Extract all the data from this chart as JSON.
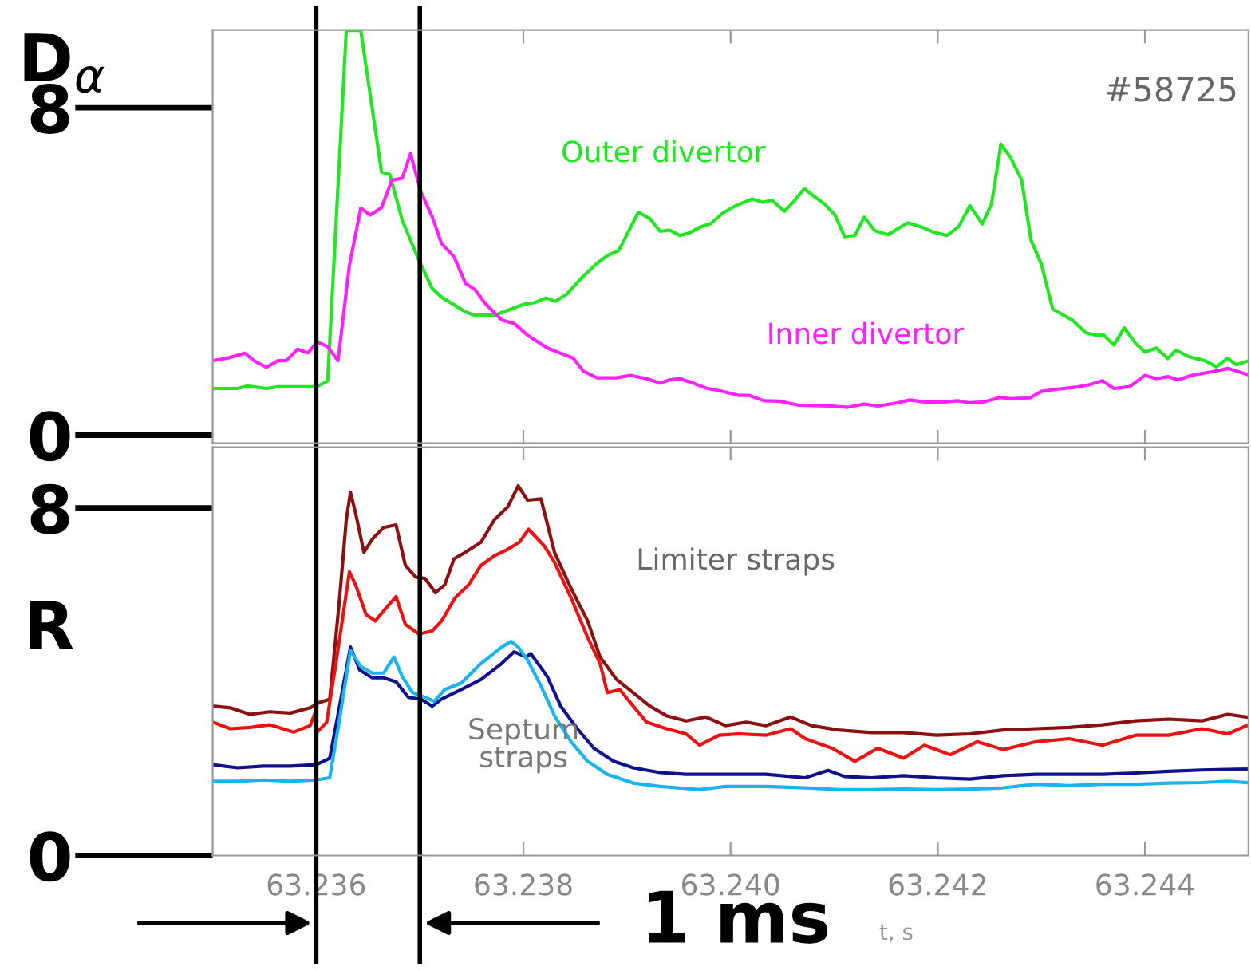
{
  "chart_data": [
    {
      "type": "line",
      "ylabel": "D$_{α}$",
      "xlim": [
        63.235,
        63.245
      ],
      "ylim": [
        -0.2,
        9.9
      ],
      "xticks": [
        {
          "value": 63.236,
          "label": null
        },
        {
          "value": 63.238,
          "label": null
        },
        {
          "value": 63.24,
          "label": null
        },
        {
          "value": 63.242,
          "label": null
        },
        {
          "value": 63.244,
          "label": null
        }
      ],
      "yticks": [
        0,
        8
      ],
      "tick_labels": "y",
      "grid": false,
      "legend": false,
      "marker": "none",
      "line_style": "solid",
      "annotations": [
        "#58725"
      ],
      "ref_lines": [
        {
          "axis": "x",
          "value": 63.236,
          "color": "#000000"
        },
        {
          "axis": "x",
          "value": 63.237,
          "color": "#000000"
        }
      ],
      "series": [
        {
          "name": "Outer divertor",
          "color": "#22e622",
          "x": [
            63.235,
            63.23524,
            63.23533,
            63.23552,
            63.23562,
            63.236,
            63.23611,
            63.23629,
            63.23643,
            63.23663,
            63.23671,
            63.23683,
            63.23699,
            63.23712,
            63.23721,
            63.23734,
            63.23744,
            63.23753,
            63.23772,
            63.23791,
            63.23801,
            63.23811,
            63.23822,
            63.23831,
            63.23842,
            63.23858,
            63.23871,
            63.23881,
            63.23892,
            63.23911,
            63.23922,
            63.23932,
            63.23941,
            63.23951,
            63.2396,
            63.23971,
            63.23981,
            63.23992,
            63.24005,
            63.24015,
            63.24021,
            63.24031,
            63.2404,
            63.24052,
            63.24061,
            63.24071,
            63.24082,
            63.24091,
            63.24101,
            63.2411,
            63.2412,
            63.24129,
            63.24139,
            63.24152,
            63.24171,
            63.24184,
            63.24196,
            63.24209,
            63.2422,
            63.24231,
            63.24243,
            63.24252,
            63.24261,
            63.2427,
            63.24281,
            63.2429,
            63.243,
            63.24311,
            63.2433,
            63.24343,
            63.24353,
            63.2436,
            63.2437,
            63.2438,
            63.24391,
            63.244,
            63.24411,
            63.24422,
            63.2443,
            63.24442,
            63.24458,
            63.24469,
            63.2448,
            63.24488,
            63.24498
          ],
          "values": [
            1.14,
            1.14,
            1.2,
            1.14,
            1.18,
            1.18,
            1.32,
            9.89,
            9.89,
            6.43,
            6.37,
            5.25,
            4.28,
            3.58,
            3.37,
            3.17,
            3.01,
            2.93,
            2.93,
            3.11,
            3.2,
            3.24,
            3.35,
            3.27,
            3.45,
            3.89,
            4.2,
            4.39,
            4.51,
            5.45,
            5.29,
            4.98,
            5.01,
            4.88,
            4.94,
            5.09,
            5.17,
            5.42,
            5.61,
            5.71,
            5.77,
            5.69,
            5.74,
            5.47,
            5.71,
            6.02,
            5.81,
            5.64,
            5.37,
            4.85,
            4.88,
            5.33,
            5.0,
            4.9,
            5.19,
            5.09,
            4.96,
            4.88,
            5.09,
            5.61,
            5.16,
            5.66,
            7.11,
            6.8,
            6.23,
            4.77,
            4.18,
            3.08,
            2.81,
            2.5,
            2.44,
            2.45,
            2.2,
            2.62,
            2.24,
            2.03,
            2.13,
            1.87,
            2.08,
            1.92,
            1.82,
            1.67,
            1.88,
            1.72,
            1.8
          ]
        },
        {
          "name": "Inner divertor",
          "color": "#ff22ff",
          "x": [
            63.235,
            63.23514,
            63.23531,
            63.23541,
            63.23552,
            63.23563,
            63.23571,
            63.23582,
            63.23592,
            63.23601,
            63.23611,
            63.23621,
            63.23632,
            63.23643,
            63.23652,
            63.23663,
            63.23673,
            63.23683,
            63.23691,
            63.23701,
            63.23712,
            63.23721,
            63.23733,
            63.23744,
            63.23753,
            63.23763,
            63.23779,
            63.23791,
            63.23804,
            63.23823,
            63.23836,
            63.23848,
            63.23858,
            63.23871,
            63.2389,
            63.23903,
            63.23919,
            63.23932,
            63.23941,
            63.23951,
            63.23964,
            63.23976,
            63.23992,
            63.24008,
            63.24018,
            63.24032,
            63.24047,
            63.24066,
            63.24098,
            63.24113,
            63.24129,
            63.24142,
            63.24161,
            63.24173,
            63.24187,
            63.24207,
            63.24219,
            63.24231,
            63.24244,
            63.2426,
            63.24271,
            63.24289,
            63.243,
            63.24314,
            63.24333,
            63.24346,
            63.24359,
            63.2437,
            63.24385,
            63.244,
            63.24411,
            63.24422,
            63.24432,
            63.24445,
            63.24467,
            63.2448,
            63.24498
          ],
          "values": [
            1.82,
            1.88,
            2.0,
            1.8,
            1.66,
            1.82,
            1.82,
            2.1,
            2.01,
            2.28,
            2.16,
            1.82,
            4.15,
            5.55,
            5.38,
            5.56,
            6.23,
            6.28,
            6.88,
            5.95,
            5.33,
            4.68,
            4.36,
            3.71,
            3.56,
            3.22,
            2.81,
            2.73,
            2.44,
            2.13,
            2.0,
            1.88,
            1.56,
            1.4,
            1.4,
            1.46,
            1.38,
            1.27,
            1.35,
            1.38,
            1.27,
            1.15,
            1.07,
            0.97,
            0.97,
            0.84,
            0.83,
            0.73,
            0.71,
            0.68,
            0.76,
            0.71,
            0.79,
            0.86,
            0.81,
            0.81,
            0.84,
            0.79,
            0.81,
            0.92,
            0.89,
            0.91,
            1.07,
            1.12,
            1.17,
            1.23,
            1.33,
            1.14,
            1.18,
            1.46,
            1.38,
            1.43,
            1.35,
            1.46,
            1.56,
            1.63,
            1.49
          ]
        }
      ]
    },
    {
      "type": "line",
      "ylabel": "R",
      "xlabel": "t, s",
      "xlim": [
        63.235,
        63.245
      ],
      "ylim": [
        0,
        9.4
      ],
      "xticks": [
        63.236,
        63.238,
        {
          "value": 63.24,
          "label": "63.240"
        },
        63.242,
        63.244
      ],
      "yticks": [
        0,
        8
      ],
      "grid": false,
      "legend": false,
      "marker": "none",
      "line_style": "solid",
      "annotations": [
        "Limiter straps",
        "Septum\nstraps",
        "1 ms"
      ],
      "ref_lines": [
        {
          "axis": "x",
          "value": 63.236,
          "color": "#000000"
        },
        {
          "axis": "x",
          "value": 63.237,
          "color": "#000000"
        }
      ],
      "series": [
        {
          "color": "#8b1010",
          "x": [
            63.235,
            63.23517,
            63.23536,
            63.23555,
            63.23575,
            63.23594,
            63.23603,
            63.23613,
            63.23622,
            63.23629,
            63.23633,
            63.23638,
            63.23646,
            63.23654,
            63.23665,
            63.23677,
            63.23686,
            63.23696,
            63.23705,
            63.23715,
            63.23724,
            63.23733,
            63.23744,
            63.23759,
            63.23772,
            63.23785,
            63.23795,
            63.23804,
            63.23817,
            63.2383,
            63.23846,
            63.23862,
            63.23874,
            63.2389,
            63.23906,
            63.23922,
            63.23938,
            63.23957,
            63.23976,
            63.23995,
            63.24015,
            63.24034,
            63.24058,
            63.24078,
            63.24104,
            63.24136,
            63.24167,
            63.24199,
            63.24231,
            63.24263,
            63.24295,
            63.24327,
            63.24359,
            63.24391,
            63.24423,
            63.24455,
            63.2448,
            63.24498
          ],
          "values": [
            3.44,
            3.4,
            3.25,
            3.31,
            3.28,
            3.4,
            3.52,
            3.6,
            5.78,
            7.73,
            8.36,
            7.88,
            6.98,
            7.28,
            7.55,
            7.61,
            6.68,
            6.41,
            6.38,
            6.05,
            6.23,
            6.83,
            6.98,
            7.21,
            7.73,
            8.03,
            8.51,
            8.18,
            8.21,
            6.98,
            6.15,
            5.4,
            4.57,
            4.05,
            3.75,
            3.44,
            3.22,
            3.1,
            3.19,
            2.99,
            3.07,
            2.99,
            3.19,
            2.99,
            2.89,
            2.83,
            2.83,
            2.77,
            2.8,
            2.89,
            2.92,
            2.95,
            3.01,
            3.1,
            3.14,
            3.1,
            3.25,
            3.19
          ]
        },
        {
          "color": "#ee1111",
          "x": [
            63.235,
            63.23517,
            63.23536,
            63.23555,
            63.23578,
            63.23594,
            63.23599,
            63.23601,
            63.2361,
            63.23619,
            63.23632,
            63.23638,
            63.23648,
            63.23657,
            63.23665,
            63.23677,
            63.23686,
            63.23699,
            63.23712,
            63.23721,
            63.23734,
            63.23747,
            63.23759,
            63.23772,
            63.23785,
            63.23796,
            63.23805,
            63.23814,
            63.2382,
            63.2383,
            63.23846,
            63.23862,
            63.23874,
            63.23881,
            63.23893,
            63.23906,
            63.23919,
            63.23938,
            63.23957,
            63.2397,
            63.23989,
            63.24008,
            63.24034,
            63.24058,
            63.24072,
            63.24098,
            63.2412,
            63.24142,
            63.24167,
            63.24187,
            63.24212,
            63.24238,
            63.24263,
            63.24295,
            63.24327,
            63.24359,
            63.24391,
            63.24423,
            63.24455,
            63.2448,
            63.24498
          ],
          "values": [
            3.07,
            2.92,
            2.95,
            3.01,
            2.84,
            2.99,
            3.29,
            2.84,
            3.07,
            4.42,
            6.53,
            6.23,
            5.55,
            5.4,
            5.63,
            5.96,
            5.32,
            5.1,
            5.17,
            5.4,
            5.93,
            6.23,
            6.68,
            6.9,
            7.05,
            7.21,
            7.51,
            7.28,
            7.13,
            6.75,
            5.93,
            5.02,
            4.42,
            3.75,
            3.82,
            3.44,
            3.07,
            2.92,
            2.8,
            2.54,
            2.77,
            2.8,
            2.77,
            2.92,
            2.69,
            2.47,
            2.17,
            2.47,
            2.24,
            2.54,
            2.32,
            2.62,
            2.44,
            2.62,
            2.69,
            2.54,
            2.77,
            2.77,
            2.92,
            2.8,
            2.99
          ]
        },
        {
          "color": "#10108c",
          "x": [
            63.235,
            63.23524,
            63.23549,
            63.23575,
            63.236,
            63.23613,
            63.23622,
            63.23633,
            63.23642,
            63.23654,
            63.23665,
            63.23677,
            63.23689,
            63.23701,
            63.23712,
            63.23721,
            63.2374,
            63.23759,
            63.23779,
            63.23791,
            63.23803,
            63.23807,
            63.23814,
            63.23823,
            63.23836,
            63.23852,
            63.23868,
            63.23887,
            63.23906,
            63.23932,
            63.23957,
            63.23995,
            63.24034,
            63.24072,
            63.24094,
            63.2411,
            63.24136,
            63.24167,
            63.24199,
            63.24231,
            63.24263,
            63.24295,
            63.24327,
            63.24359,
            63.24391,
            63.24423,
            63.24455,
            63.24498
          ],
          "values": [
            2.09,
            2.02,
            2.06,
            2.06,
            2.09,
            2.24,
            3.37,
            4.8,
            4.27,
            4.09,
            4.09,
            4.0,
            3.64,
            3.6,
            3.44,
            3.6,
            3.82,
            4.05,
            4.42,
            4.69,
            4.57,
            4.65,
            4.42,
            4.12,
            3.44,
            2.92,
            2.47,
            2.17,
            2.02,
            1.91,
            1.87,
            1.87,
            1.87,
            1.79,
            1.96,
            1.82,
            1.79,
            1.84,
            1.79,
            1.76,
            1.84,
            1.87,
            1.87,
            1.87,
            1.9,
            1.94,
            1.97,
            1.99
          ]
        },
        {
          "color": "#18b4f0",
          "x": [
            63.235,
            63.23524,
            63.23549,
            63.23575,
            63.236,
            63.23613,
            63.23622,
            63.23633,
            63.23643,
            63.23654,
            63.23665,
            63.23675,
            63.23683,
            63.23693,
            63.23702,
            63.23714,
            63.23724,
            63.2374,
            63.23759,
            63.23779,
            63.23788,
            63.23795,
            63.23804,
            63.23817,
            63.2383,
            63.23846,
            63.23862,
            63.23881,
            63.23906,
            63.23932,
            63.2397,
            63.23995,
            63.24034,
            63.24072,
            63.24104,
            63.24136,
            63.24167,
            63.24199,
            63.24231,
            63.24263,
            63.24295,
            63.24327,
            63.24359,
            63.24391,
            63.24423,
            63.24455,
            63.2448,
            63.24498
          ],
          "values": [
            1.71,
            1.71,
            1.74,
            1.71,
            1.74,
            1.79,
            3.07,
            4.72,
            4.35,
            4.2,
            4.2,
            4.57,
            4.12,
            3.75,
            3.67,
            3.55,
            3.82,
            3.97,
            4.42,
            4.8,
            4.93,
            4.8,
            4.5,
            3.9,
            3.22,
            2.62,
            2.17,
            1.87,
            1.67,
            1.59,
            1.52,
            1.59,
            1.59,
            1.56,
            1.52,
            1.52,
            1.53,
            1.52,
            1.53,
            1.56,
            1.64,
            1.61,
            1.64,
            1.64,
            1.67,
            1.68,
            1.71,
            1.68
          ]
        }
      ]
    }
  ]
}
